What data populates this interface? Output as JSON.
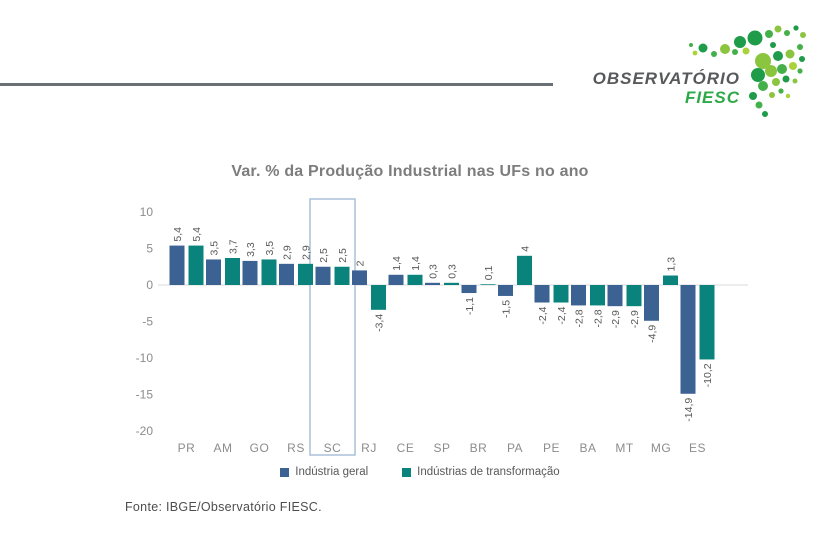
{
  "logo": {
    "brand_line1": "OBSERVATÓRIO",
    "brand_line2": "FIESC",
    "colors": {
      "line1": "#58595B",
      "line2": "#2EA94A",
      "rule": "#6A6F73"
    }
  },
  "chart_data": {
    "type": "bar",
    "title": "Var. % da Produção Industrial nas UFs no ano",
    "categories": [
      "PR",
      "AM",
      "GO",
      "RS",
      "SC",
      "RJ",
      "CE",
      "SP",
      "BR",
      "PA",
      "PE",
      "BA",
      "MT",
      "MG",
      "ES"
    ],
    "series": [
      {
        "name": "Indústria geral",
        "color": "#3B6293",
        "values": [
          5.4,
          3.5,
          3.3,
          2.9,
          2.5,
          2,
          1.4,
          0.3,
          -1.1,
          -1.5,
          -2.4,
          -2.8,
          -2.9,
          -4.9,
          -14.9
        ]
      },
      {
        "name": "Indústrias de transformação",
        "color": "#0B837D",
        "values": [
          5.4,
          3.7,
          3.5,
          2.9,
          2.5,
          -3.4,
          1.4,
          0.3,
          0.1,
          4,
          -2.4,
          -2.8,
          -2.9,
          1.3,
          -10.2
        ]
      }
    ],
    "ylim": [
      -20,
      10
    ],
    "yticks": [
      10,
      5,
      0,
      -5,
      -10,
      -15,
      -20
    ],
    "grid": "off",
    "legend_position": "bottom",
    "highlight_category": "SC",
    "highlight_box_color": "#A9C0D8",
    "decimal_separator": ",",
    "value_label_color": "#595959",
    "axis_label_color": "#8C8C8C",
    "zero_line_color": "#D9D9D9"
  },
  "footer": {
    "source": "Fonte: IBGE/Observatório FIESC."
  }
}
